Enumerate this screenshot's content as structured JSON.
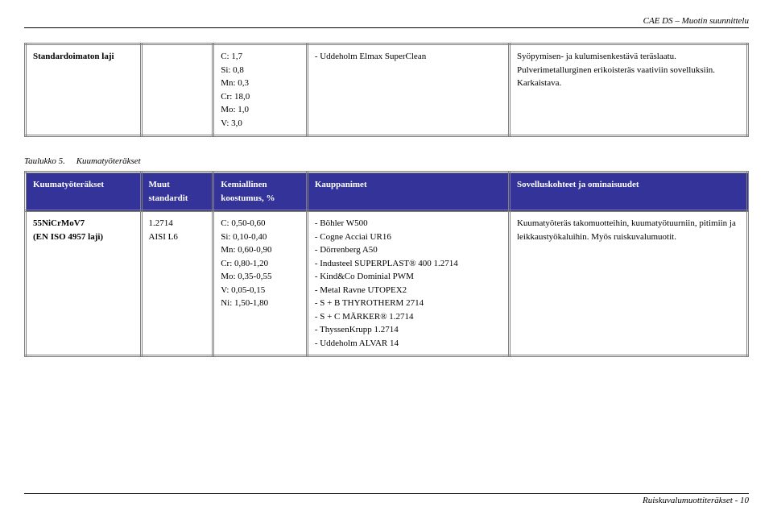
{
  "header": {
    "title": "CAE DS – Muotin suunnittelu"
  },
  "table1": {
    "rows": [
      {
        "name": "Standardoimaton laji",
        "std": "",
        "chem": "C: 1,7\nSi: 0,8\nMn: 0,3\nCr: 18,0\nMo: 1,0\nV: 3,0",
        "brands": "- Uddeholm Elmax SuperClean",
        "apps": "Syöpymisen- ja kulumisenkestävä teräslaatu. Pulverimetallurginen erikoisteräs vaativiin sovelluksiin. Karkaistava."
      }
    ]
  },
  "caption2": {
    "label": "Taulukko 5.",
    "text": "Kuumatyöteräkset"
  },
  "table2": {
    "headers": {
      "a": "Kuumatyöteräkset",
      "b": "Muut standardit",
      "c": "Kemiallinen koostumus, %",
      "d": "Kauppanimet",
      "e": "Sovelluskohteet ja ominaisuudet"
    },
    "rows": [
      {
        "name": "55NiCrMoV7\n(EN ISO 4957 laji)",
        "std": "1.2714\nAISI L6",
        "chem": "C: 0,50-0,60\nSi: 0,10-0,40\nMn: 0,60-0,90\nCr: 0,80-1,20\nMo: 0,35-0,55\nV: 0,05-0,15\nNi: 1,50-1,80",
        "brands": "- Böhler W500\n- Cogne Acciai UR16\n- Dörrenberg A50\n- Industeel SUPERPLAST® 400 1.2714\n- Kind&Co Dominial PWM\n- Metal Ravne UTOPEX2\n- S + B THYROTHERM 2714\n- S + C MÄRKER® 1.2714\n- ThyssenKrupp 1.2714\n- Uddeholm ALVAR 14",
        "apps": "Kuumatyöteräs takomuotteihin, kuumatyötuurniin, pitimiin ja leikkaustyökaluihin. Myös ruiskuvalumuotit."
      }
    ]
  },
  "footer": {
    "text": "Ruiskuvalumuottiteräkset - 10"
  }
}
